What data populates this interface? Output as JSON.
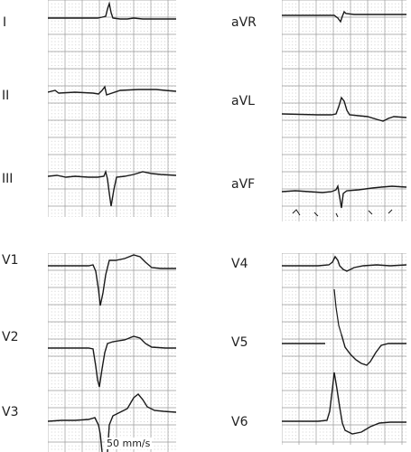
{
  "panels": [
    {
      "id": "limb-left",
      "leads": [
        "I",
        "II",
        "III"
      ]
    },
    {
      "id": "limb-right",
      "leads": [
        "aVR",
        "aVL",
        "aVF"
      ]
    },
    {
      "id": "chest-left",
      "leads": [
        "V1",
        "V2",
        "V3"
      ]
    },
    {
      "id": "chest-right",
      "leads": [
        "V4",
        "V5",
        "V6"
      ]
    }
  ],
  "labels": {
    "I": "I",
    "II": "II",
    "III": "III",
    "aVR": "aVR",
    "aVL": "aVL",
    "aVF": "aVF",
    "V1": "V1",
    "V2": "V2",
    "V3": "V3",
    "V4": "V4",
    "V5": "V5",
    "V6": "V6"
  },
  "paper_speed": "50 mm/s",
  "colors": {
    "grid": "#9a9a9a",
    "trace": "#1a1a1a"
  }
}
